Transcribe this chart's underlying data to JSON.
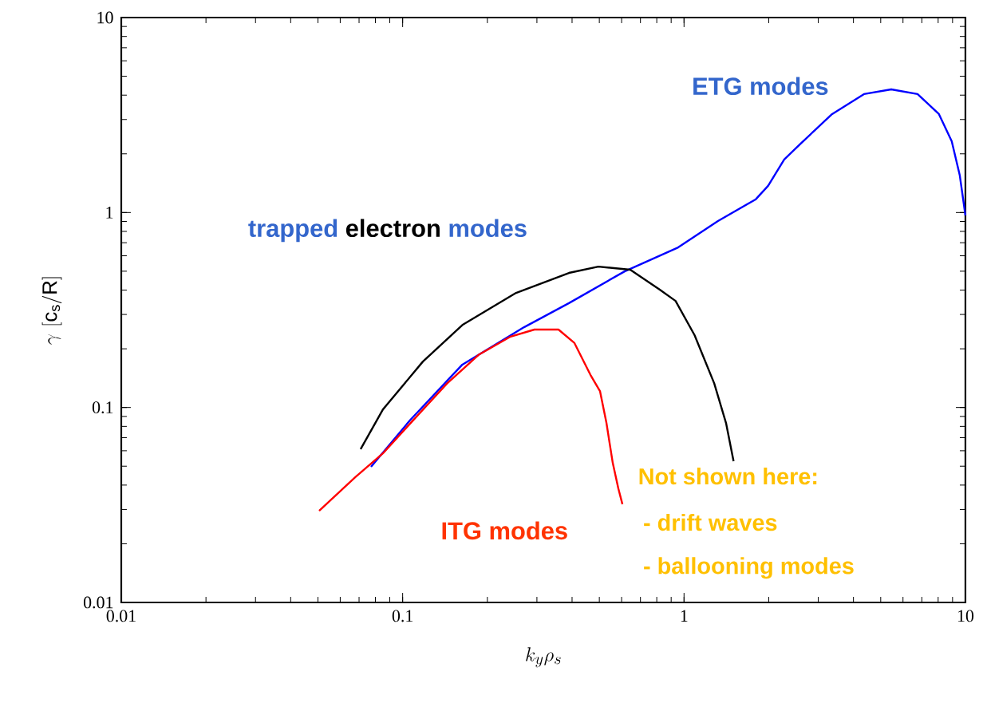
{
  "chart_data": {
    "type": "line",
    "xlabel": "k_y\\rho_s",
    "ylabel": "\\gamma\\,\\left[\\mathrm{c_s/R}\\right]",
    "log": "xy",
    "xlim": [
      0.01,
      10
    ],
    "ylim": [
      0.01,
      10
    ],
    "xticks": [
      0.01,
      0.1,
      1,
      10
    ],
    "yticks": [
      0.01,
      0.1,
      1,
      10
    ],
    "series": [
      {
        "color": "#0000ff",
        "x": [
          0.0772,
          0.106,
          0.163,
          0.27,
          0.39,
          0.615,
          0.953,
          1.32,
          1.8,
          1.99,
          2.27,
          2.59,
          3.36,
          4.36,
          5.45,
          6.76,
          8.05,
          8.94,
          9.55,
          10
        ],
        "values": [
          0.0496,
          0.0857,
          0.166,
          0.258,
          0.343,
          0.499,
          0.662,
          0.904,
          1.17,
          1.37,
          1.87,
          2.25,
          3.2,
          4.05,
          4.28,
          4.05,
          3.2,
          2.32,
          1.55,
          0.966
        ]
      },
      {
        "color": "#000000",
        "x": [
          0.0709,
          0.0851,
          0.118,
          0.163,
          0.253,
          0.39,
          0.496,
          0.644,
          0.82,
          0.933,
          1.09,
          1.28,
          1.41,
          1.5
        ],
        "values": [
          0.0611,
          0.0977,
          0.172,
          0.265,
          0.387,
          0.49,
          0.528,
          0.509,
          0.402,
          0.352,
          0.235,
          0.133,
          0.0833,
          0.053
        ]
      },
      {
        "color": "#ff0000",
        "x": [
          0.0505,
          0.0678,
          0.0851,
          0.11,
          0.144,
          0.186,
          0.242,
          0.294,
          0.358,
          0.408,
          0.465,
          0.503,
          0.53,
          0.558,
          0.584,
          0.604
        ],
        "values": [
          0.0295,
          0.0439,
          0.0582,
          0.0873,
          0.133,
          0.186,
          0.231,
          0.251,
          0.251,
          0.214,
          0.147,
          0.121,
          0.0833,
          0.052,
          0.0385,
          0.0319
        ]
      }
    ],
    "annotations": [
      "trapped",
      "electron",
      "modes",
      "ETG modes",
      "ITG modes",
      "Not shown here:",
      "- drift waves",
      "- ballooning modes"
    ]
  }
}
